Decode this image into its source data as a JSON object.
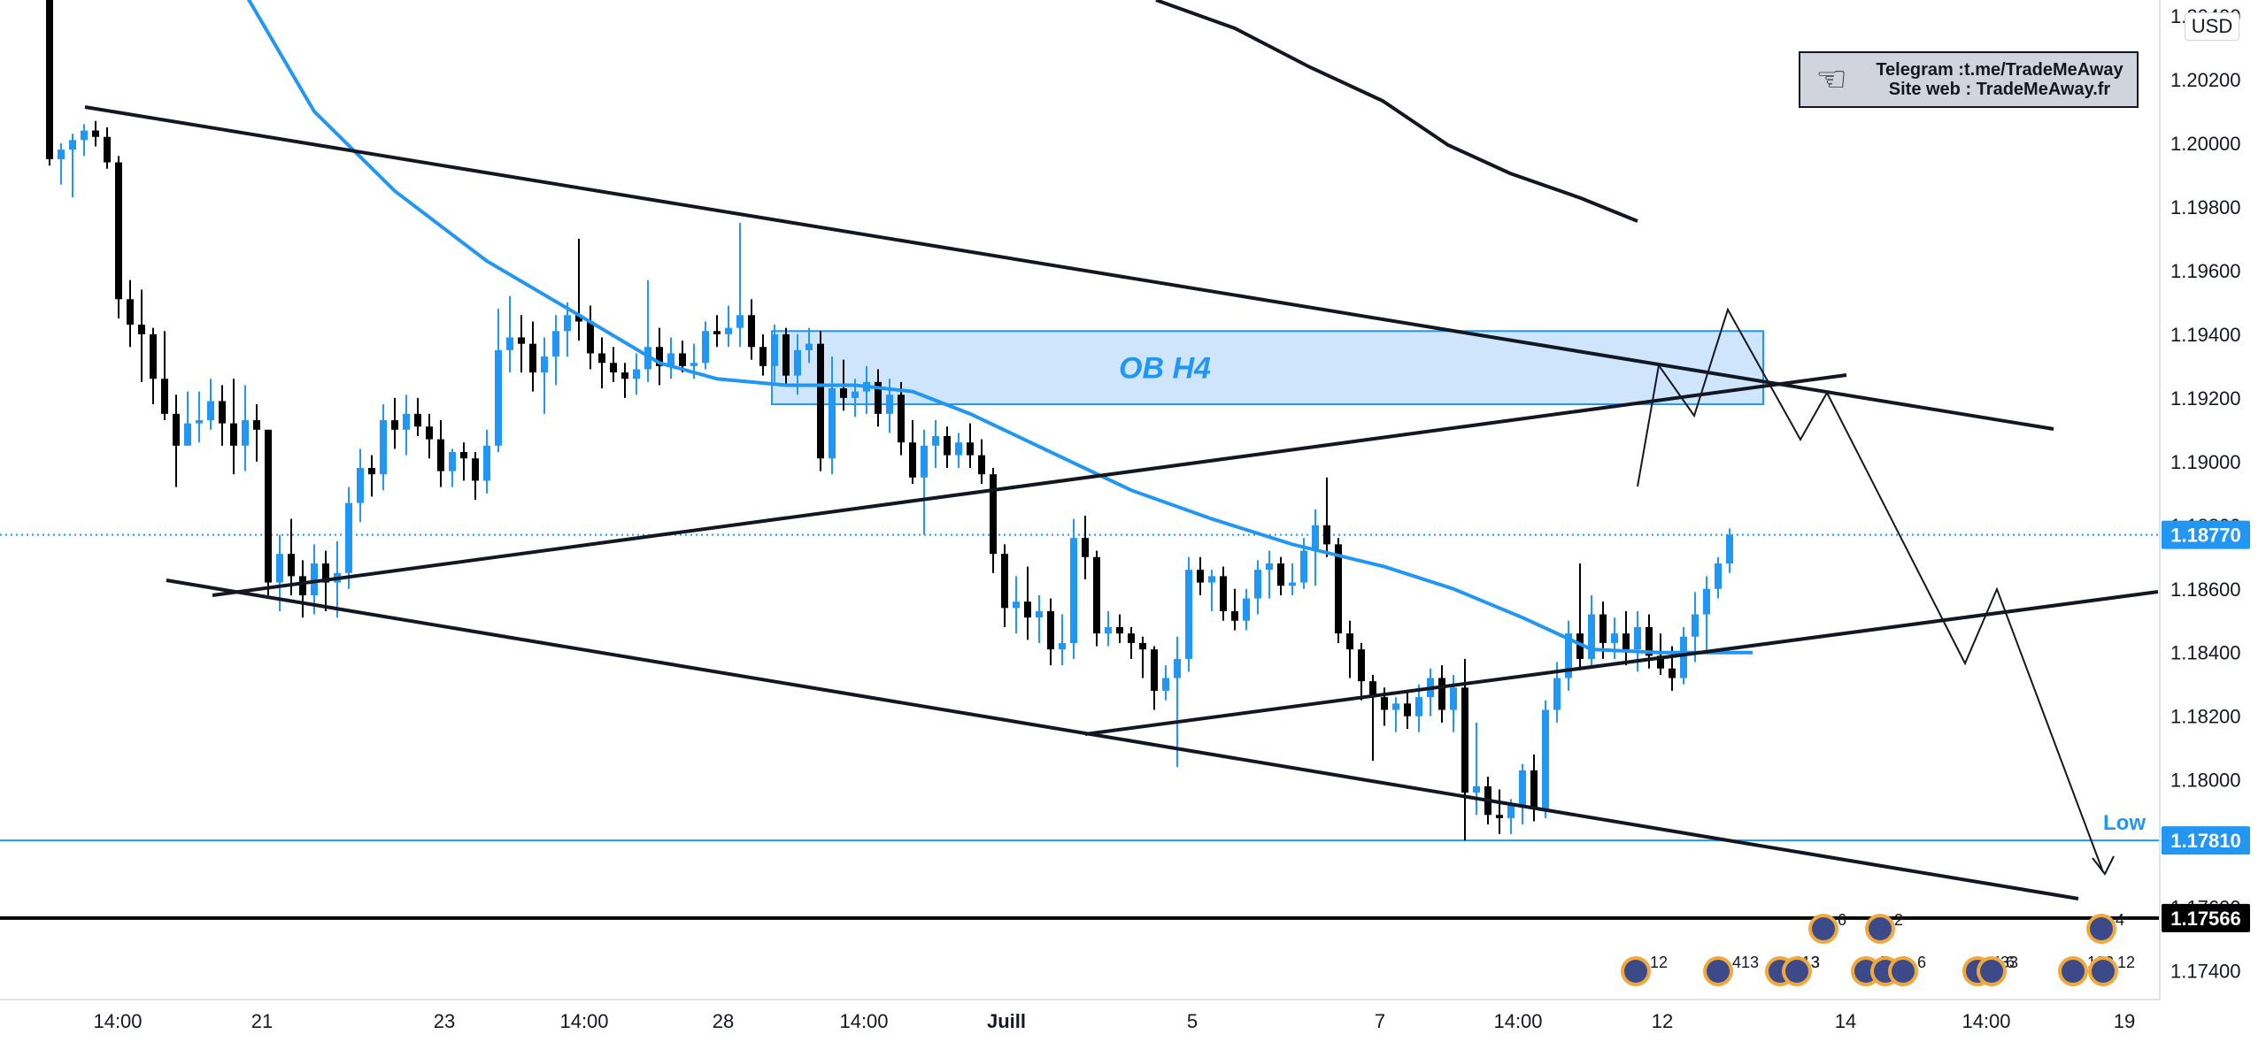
{
  "chart_data": {
    "type": "candlestick",
    "symbol_currency": "USD",
    "price_axis": {
      "range": [
        1.1731,
        1.2045
      ],
      "ticks": [
        "1.20400",
        "1.20200",
        "1.20000",
        "1.19800",
        "1.19600",
        "1.19400",
        "1.19200",
        "1.19000",
        "1.18800",
        "1.18600",
        "1.18400",
        "1.18200",
        "1.18000",
        "1.17800",
        "1.17600",
        "1.17400"
      ]
    },
    "time_axis": {
      "ticks": [
        "14:00",
        "21",
        "23",
        "14:00",
        "28",
        "14:00",
        "Juill",
        "5",
        "7",
        "14:00",
        "12",
        "14",
        "14:00",
        "19"
      ]
    },
    "price_tags": {
      "current": "1.18770",
      "low": "1.17810",
      "support": "1.17566"
    },
    "low_label": "Low",
    "zone": {
      "label": "OB H4",
      "top": 1.1941,
      "bottom": 1.1918
    },
    "colors": {
      "up": "#2196f3",
      "down": "#000000",
      "ma": "#2196f3",
      "zone_fill": "#cfe5fb",
      "zone_border": "#2196f3",
      "current_price": "#2196f3",
      "support": "#000000"
    },
    "candles": [
      {
        "o": 1.2045,
        "h": 1.2049,
        "l": 1.1993,
        "c": 1.1995
      },
      {
        "o": 1.1995,
        "h": 1.2,
        "l": 1.1987,
        "c": 1.1998
      },
      {
        "o": 1.1998,
        "h": 1.2003,
        "l": 1.1983,
        "c": 1.2001
      },
      {
        "o": 1.2001,
        "h": 1.2006,
        "l": 1.1996,
        "c": 1.2004
      },
      {
        "o": 1.2004,
        "h": 1.2007,
        "l": 1.1999,
        "c": 1.2002
      },
      {
        "o": 1.2002,
        "h": 1.2005,
        "l": 1.1992,
        "c": 1.1994
      },
      {
        "o": 1.1994,
        "h": 1.1996,
        "l": 1.1945,
        "c": 1.1951
      },
      {
        "o": 1.1951,
        "h": 1.1957,
        "l": 1.1936,
        "c": 1.1943
      },
      {
        "o": 1.1943,
        "h": 1.1954,
        "l": 1.1925,
        "c": 1.194
      },
      {
        "o": 1.194,
        "h": 1.1942,
        "l": 1.1918,
        "c": 1.1926
      },
      {
        "o": 1.1926,
        "h": 1.1941,
        "l": 1.1913,
        "c": 1.1915
      },
      {
        "o": 1.1915,
        "h": 1.1921,
        "l": 1.1892,
        "c": 1.1905
      },
      {
        "o": 1.1905,
        "h": 1.1922,
        "l": 1.1905,
        "c": 1.1912
      },
      {
        "o": 1.1912,
        "h": 1.1922,
        "l": 1.1906,
        "c": 1.1913
      },
      {
        "o": 1.1913,
        "h": 1.1926,
        "l": 1.191,
        "c": 1.1919
      },
      {
        "o": 1.1919,
        "h": 1.1924,
        "l": 1.1905,
        "c": 1.1912
      },
      {
        "o": 1.1912,
        "h": 1.1926,
        "l": 1.1896,
        "c": 1.1905
      },
      {
        "o": 1.1905,
        "h": 1.1924,
        "l": 1.1897,
        "c": 1.1913
      },
      {
        "o": 1.1913,
        "h": 1.1918,
        "l": 1.19,
        "c": 1.191
      },
      {
        "o": 1.191,
        "h": 1.191,
        "l": 1.1858,
        "c": 1.1862
      },
      {
        "o": 1.1862,
        "h": 1.1877,
        "l": 1.1853,
        "c": 1.1871
      },
      {
        "o": 1.1871,
        "h": 1.1882,
        "l": 1.1858,
        "c": 1.1864
      },
      {
        "o": 1.1864,
        "h": 1.1869,
        "l": 1.1851,
        "c": 1.1858
      },
      {
        "o": 1.1858,
        "h": 1.1874,
        "l": 1.1852,
        "c": 1.1868
      },
      {
        "o": 1.1868,
        "h": 1.1872,
        "l": 1.1853,
        "c": 1.1862
      },
      {
        "o": 1.1862,
        "h": 1.1875,
        "l": 1.1851,
        "c": 1.1865
      },
      {
        "o": 1.1865,
        "h": 1.1892,
        "l": 1.186,
        "c": 1.1887
      },
      {
        "o": 1.1887,
        "h": 1.1904,
        "l": 1.1881,
        "c": 1.1898
      },
      {
        "o": 1.1898,
        "h": 1.1902,
        "l": 1.1889,
        "c": 1.1896
      },
      {
        "o": 1.1896,
        "h": 1.1918,
        "l": 1.1891,
        "c": 1.1913
      },
      {
        "o": 1.1913,
        "h": 1.192,
        "l": 1.1904,
        "c": 1.191
      },
      {
        "o": 1.191,
        "h": 1.1921,
        "l": 1.1902,
        "c": 1.1915
      },
      {
        "o": 1.1915,
        "h": 1.192,
        "l": 1.1908,
        "c": 1.1911
      },
      {
        "o": 1.1911,
        "h": 1.1915,
        "l": 1.1901,
        "c": 1.1907
      },
      {
        "o": 1.1907,
        "h": 1.1913,
        "l": 1.1892,
        "c": 1.1897
      },
      {
        "o": 1.1897,
        "h": 1.1904,
        "l": 1.1892,
        "c": 1.1903
      },
      {
        "o": 1.1903,
        "h": 1.1906,
        "l": 1.1894,
        "c": 1.1901
      },
      {
        "o": 1.1901,
        "h": 1.1903,
        "l": 1.1888,
        "c": 1.1894
      },
      {
        "o": 1.1894,
        "h": 1.191,
        "l": 1.189,
        "c": 1.1905
      },
      {
        "o": 1.1905,
        "h": 1.1948,
        "l": 1.1903,
        "c": 1.1935
      },
      {
        "o": 1.1935,
        "h": 1.1952,
        "l": 1.1928,
        "c": 1.1939
      },
      {
        "o": 1.1939,
        "h": 1.1946,
        "l": 1.1928,
        "c": 1.1937
      },
      {
        "o": 1.1937,
        "h": 1.1944,
        "l": 1.1922,
        "c": 1.1928
      },
      {
        "o": 1.1928,
        "h": 1.1939,
        "l": 1.1915,
        "c": 1.1933
      },
      {
        "o": 1.1933,
        "h": 1.1946,
        "l": 1.1924,
        "c": 1.1941
      },
      {
        "o": 1.1941,
        "h": 1.195,
        "l": 1.1933,
        "c": 1.1946
      },
      {
        "o": 1.1946,
        "h": 1.197,
        "l": 1.1938,
        "c": 1.1944
      },
      {
        "o": 1.1944,
        "h": 1.1949,
        "l": 1.1929,
        "c": 1.1934
      },
      {
        "o": 1.1934,
        "h": 1.1939,
        "l": 1.1923,
        "c": 1.1931
      },
      {
        "o": 1.1931,
        "h": 1.1936,
        "l": 1.1925,
        "c": 1.1928
      },
      {
        "o": 1.1928,
        "h": 1.1931,
        "l": 1.192,
        "c": 1.1926
      },
      {
        "o": 1.1926,
        "h": 1.1934,
        "l": 1.1921,
        "c": 1.1929
      },
      {
        "o": 1.1929,
        "h": 1.1957,
        "l": 1.1925,
        "c": 1.1936
      },
      {
        "o": 1.1936,
        "h": 1.1942,
        "l": 1.1924,
        "c": 1.193
      },
      {
        "o": 1.193,
        "h": 1.1939,
        "l": 1.1926,
        "c": 1.1934
      },
      {
        "o": 1.1934,
        "h": 1.1938,
        "l": 1.1928,
        "c": 1.193
      },
      {
        "o": 1.193,
        "h": 1.1937,
        "l": 1.1926,
        "c": 1.1931
      },
      {
        "o": 1.1931,
        "h": 1.1944,
        "l": 1.1929,
        "c": 1.1941
      },
      {
        "o": 1.1941,
        "h": 1.1946,
        "l": 1.1936,
        "c": 1.194
      },
      {
        "o": 1.194,
        "h": 1.1949,
        "l": 1.1936,
        "c": 1.1942
      },
      {
        "o": 1.1942,
        "h": 1.1975,
        "l": 1.1936,
        "c": 1.1946
      },
      {
        "o": 1.1946,
        "h": 1.1951,
        "l": 1.1932,
        "c": 1.1936
      },
      {
        "o": 1.1936,
        "h": 1.194,
        "l": 1.1927,
        "c": 1.193
      },
      {
        "o": 1.193,
        "h": 1.1943,
        "l": 1.1925,
        "c": 1.194
      },
      {
        "o": 1.194,
        "h": 1.1942,
        "l": 1.1924,
        "c": 1.1927
      },
      {
        "o": 1.1927,
        "h": 1.194,
        "l": 1.1921,
        "c": 1.1935
      },
      {
        "o": 1.1935,
        "h": 1.1942,
        "l": 1.1931,
        "c": 1.1937
      },
      {
        "o": 1.1937,
        "h": 1.1941,
        "l": 1.1897,
        "c": 1.1901
      },
      {
        "o": 1.1901,
        "h": 1.1933,
        "l": 1.1896,
        "c": 1.1923
      },
      {
        "o": 1.1923,
        "h": 1.1932,
        "l": 1.1916,
        "c": 1.192
      },
      {
        "o": 1.192,
        "h": 1.1926,
        "l": 1.1914,
        "c": 1.1922
      },
      {
        "o": 1.1922,
        "h": 1.193,
        "l": 1.1915,
        "c": 1.1925
      },
      {
        "o": 1.1925,
        "h": 1.1929,
        "l": 1.1911,
        "c": 1.1915
      },
      {
        "o": 1.1915,
        "h": 1.1926,
        "l": 1.1909,
        "c": 1.1921
      },
      {
        "o": 1.1921,
        "h": 1.1925,
        "l": 1.1902,
        "c": 1.1906
      },
      {
        "o": 1.1906,
        "h": 1.1913,
        "l": 1.1893,
        "c": 1.1895
      },
      {
        "o": 1.1895,
        "h": 1.191,
        "l": 1.1877,
        "c": 1.1905
      },
      {
        "o": 1.1905,
        "h": 1.1913,
        "l": 1.1898,
        "c": 1.1908
      },
      {
        "o": 1.1908,
        "h": 1.1911,
        "l": 1.1898,
        "c": 1.1902
      },
      {
        "o": 1.1902,
        "h": 1.1909,
        "l": 1.1898,
        "c": 1.1906
      },
      {
        "o": 1.1906,
        "h": 1.1912,
        "l": 1.1898,
        "c": 1.1902
      },
      {
        "o": 1.1902,
        "h": 1.1907,
        "l": 1.1893,
        "c": 1.1896
      },
      {
        "o": 1.1896,
        "h": 1.1898,
        "l": 1.1865,
        "c": 1.1871
      },
      {
        "o": 1.1871,
        "h": 1.1874,
        "l": 1.1848,
        "c": 1.1854
      },
      {
        "o": 1.1854,
        "h": 1.1864,
        "l": 1.1846,
        "c": 1.1856
      },
      {
        "o": 1.1856,
        "h": 1.1867,
        "l": 1.1844,
        "c": 1.1851
      },
      {
        "o": 1.1851,
        "h": 1.1858,
        "l": 1.1843,
        "c": 1.1853
      },
      {
        "o": 1.1853,
        "h": 1.1857,
        "l": 1.1836,
        "c": 1.1841
      },
      {
        "o": 1.1841,
        "h": 1.1852,
        "l": 1.1836,
        "c": 1.1843
      },
      {
        "o": 1.1843,
        "h": 1.1882,
        "l": 1.1838,
        "c": 1.1876
      },
      {
        "o": 1.1876,
        "h": 1.1883,
        "l": 1.1863,
        "c": 1.187
      },
      {
        "o": 1.187,
        "h": 1.1872,
        "l": 1.1842,
        "c": 1.1846
      },
      {
        "o": 1.1846,
        "h": 1.1853,
        "l": 1.1842,
        "c": 1.1848
      },
      {
        "o": 1.1848,
        "h": 1.1852,
        "l": 1.1843,
        "c": 1.1846
      },
      {
        "o": 1.1846,
        "h": 1.1848,
        "l": 1.1838,
        "c": 1.1843
      },
      {
        "o": 1.1843,
        "h": 1.1845,
        "l": 1.1832,
        "c": 1.1841
      },
      {
        "o": 1.1841,
        "h": 1.1842,
        "l": 1.1822,
        "c": 1.1828
      },
      {
        "o": 1.1828,
        "h": 1.1836,
        "l": 1.1825,
        "c": 1.1832
      },
      {
        "o": 1.1832,
        "h": 1.1845,
        "l": 1.1804,
        "c": 1.1838
      },
      {
        "o": 1.1838,
        "h": 1.187,
        "l": 1.1834,
        "c": 1.1866
      },
      {
        "o": 1.1866,
        "h": 1.187,
        "l": 1.1858,
        "c": 1.1862
      },
      {
        "o": 1.1862,
        "h": 1.1866,
        "l": 1.1853,
        "c": 1.1864
      },
      {
        "o": 1.1864,
        "h": 1.1867,
        "l": 1.185,
        "c": 1.1853
      },
      {
        "o": 1.1853,
        "h": 1.186,
        "l": 1.1847,
        "c": 1.185
      },
      {
        "o": 1.185,
        "h": 1.186,
        "l": 1.1847,
        "c": 1.1857
      },
      {
        "o": 1.1857,
        "h": 1.1869,
        "l": 1.1852,
        "c": 1.1866
      },
      {
        "o": 1.1866,
        "h": 1.1872,
        "l": 1.1857,
        "c": 1.1868
      },
      {
        "o": 1.1868,
        "h": 1.187,
        "l": 1.1858,
        "c": 1.1861
      },
      {
        "o": 1.1861,
        "h": 1.1868,
        "l": 1.1858,
        "c": 1.1862
      },
      {
        "o": 1.1862,
        "h": 1.1876,
        "l": 1.186,
        "c": 1.1872
      },
      {
        "o": 1.1872,
        "h": 1.1885,
        "l": 1.1861,
        "c": 1.188
      },
      {
        "o": 1.188,
        "h": 1.1895,
        "l": 1.187,
        "c": 1.1874
      },
      {
        "o": 1.1874,
        "h": 1.1876,
        "l": 1.1843,
        "c": 1.1846
      },
      {
        "o": 1.1846,
        "h": 1.185,
        "l": 1.1832,
        "c": 1.1841
      },
      {
        "o": 1.1841,
        "h": 1.1843,
        "l": 1.1825,
        "c": 1.1831
      },
      {
        "o": 1.1831,
        "h": 1.1833,
        "l": 1.1806,
        "c": 1.1826
      },
      {
        "o": 1.1826,
        "h": 1.1829,
        "l": 1.1817,
        "c": 1.1822
      },
      {
        "o": 1.1822,
        "h": 1.1826,
        "l": 1.1815,
        "c": 1.1824
      },
      {
        "o": 1.1824,
        "h": 1.1828,
        "l": 1.1816,
        "c": 1.182
      },
      {
        "o": 1.182,
        "h": 1.183,
        "l": 1.1815,
        "c": 1.1826
      },
      {
        "o": 1.1826,
        "h": 1.1835,
        "l": 1.182,
        "c": 1.1832
      },
      {
        "o": 1.1832,
        "h": 1.1836,
        "l": 1.1818,
        "c": 1.1822
      },
      {
        "o": 1.1822,
        "h": 1.1833,
        "l": 1.1815,
        "c": 1.1829
      },
      {
        "o": 1.1829,
        "h": 1.1838,
        "l": 1.1781,
        "c": 1.1796
      },
      {
        "o": 1.1796,
        "h": 1.1818,
        "l": 1.1789,
        "c": 1.1798
      },
      {
        "o": 1.1798,
        "h": 1.1801,
        "l": 1.1786,
        "c": 1.1789
      },
      {
        "o": 1.1789,
        "h": 1.1797,
        "l": 1.1783,
        "c": 1.1788
      },
      {
        "o": 1.1788,
        "h": 1.1794,
        "l": 1.1783,
        "c": 1.1792
      },
      {
        "o": 1.1792,
        "h": 1.1805,
        "l": 1.1786,
        "c": 1.1803
      },
      {
        "o": 1.1803,
        "h": 1.1808,
        "l": 1.1787,
        "c": 1.1791
      },
      {
        "o": 1.1791,
        "h": 1.1825,
        "l": 1.1788,
        "c": 1.1822
      },
      {
        "o": 1.1822,
        "h": 1.1837,
        "l": 1.1818,
        "c": 1.1832
      },
      {
        "o": 1.1832,
        "h": 1.185,
        "l": 1.1828,
        "c": 1.1846
      },
      {
        "o": 1.1846,
        "h": 1.1868,
        "l": 1.1835,
        "c": 1.1838
      },
      {
        "o": 1.1838,
        "h": 1.1858,
        "l": 1.1836,
        "c": 1.1852
      },
      {
        "o": 1.1852,
        "h": 1.1856,
        "l": 1.1838,
        "c": 1.1843
      },
      {
        "o": 1.1843,
        "h": 1.1851,
        "l": 1.1838,
        "c": 1.1846
      },
      {
        "o": 1.1846,
        "h": 1.1853,
        "l": 1.1836,
        "c": 1.1841
      },
      {
        "o": 1.1841,
        "h": 1.1853,
        "l": 1.1834,
        "c": 1.1848
      },
      {
        "o": 1.1848,
        "h": 1.1852,
        "l": 1.1835,
        "c": 1.1839
      },
      {
        "o": 1.1839,
        "h": 1.1846,
        "l": 1.1833,
        "c": 1.1835
      },
      {
        "o": 1.1835,
        "h": 1.1842,
        "l": 1.1828,
        "c": 1.1832
      },
      {
        "o": 1.1832,
        "h": 1.1848,
        "l": 1.183,
        "c": 1.1845
      },
      {
        "o": 1.1845,
        "h": 1.1859,
        "l": 1.1837,
        "c": 1.1852
      },
      {
        "o": 1.1852,
        "h": 1.1864,
        "l": 1.184,
        "c": 1.186
      },
      {
        "o": 1.186,
        "h": 1.187,
        "l": 1.1857,
        "c": 1.1868
      },
      {
        "o": 1.1868,
        "h": 1.1879,
        "l": 1.1865,
        "c": 1.1877
      }
    ],
    "moving_average": [
      {
        "i": 17,
        "v": 1.2047
      },
      {
        "i": 23,
        "v": 1.201
      },
      {
        "i": 30,
        "v": 1.1985
      },
      {
        "i": 38,
        "v": 1.1963
      },
      {
        "i": 46,
        "v": 1.1946
      },
      {
        "i": 53,
        "v": 1.1931
      },
      {
        "i": 58,
        "v": 1.1926
      },
      {
        "i": 64,
        "v": 1.1924
      },
      {
        "i": 70,
        "v": 1.1924
      },
      {
        "i": 75,
        "v": 1.1922
      },
      {
        "i": 80,
        "v": 1.1915
      },
      {
        "i": 87,
        "v": 1.1903
      },
      {
        "i": 94,
        "v": 1.1891
      },
      {
        "i": 101,
        "v": 1.1882
      },
      {
        "i": 108,
        "v": 1.1874
      },
      {
        "i": 116,
        "v": 1.1867
      },
      {
        "i": 122,
        "v": 1.186
      },
      {
        "i": 128,
        "v": 1.1851
      },
      {
        "i": 134,
        "v": 1.1841
      },
      {
        "i": 140,
        "v": 1.184
      },
      {
        "i": 148,
        "v": 1.184
      }
    ],
    "event_badges": [
      "12",
      "413",
      "113",
      "3",
      "6",
      "5",
      "1",
      "6",
      "2",
      "433",
      "6",
      "4",
      "122",
      "12"
    ]
  },
  "info_box": {
    "line1": "Telegram :t.me/TradeMeAway",
    "line2": "Site web : TradeMeAway.fr",
    "icon": "thumbs-up-icon"
  },
  "currency": "USD"
}
